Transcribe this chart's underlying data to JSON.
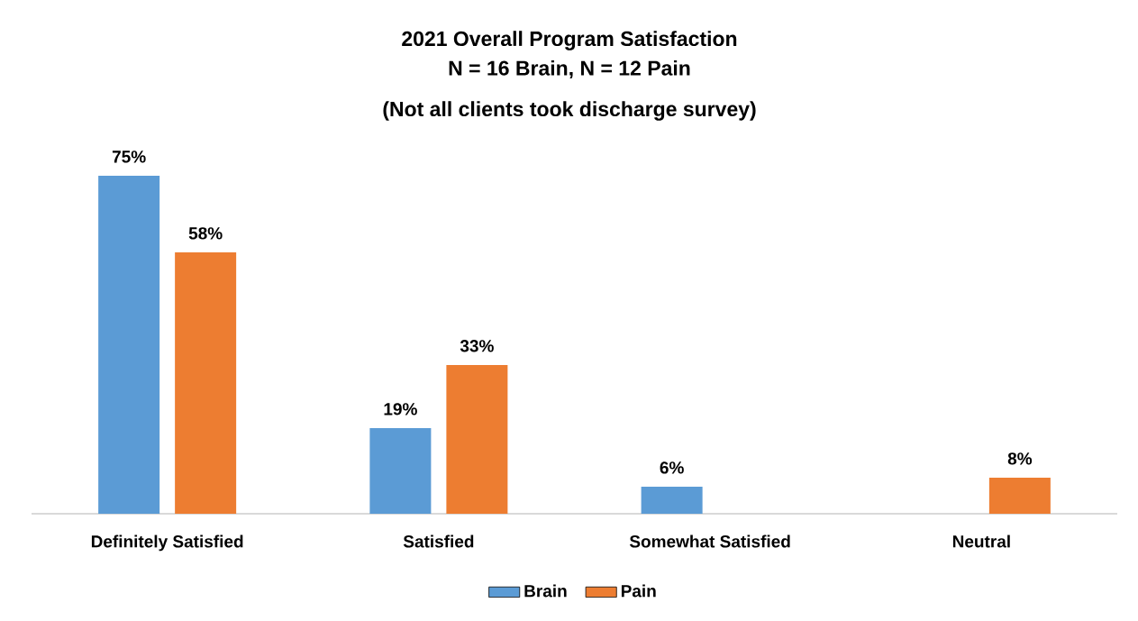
{
  "chart_data": {
    "type": "bar",
    "title": "2021 Overall Program Satisfaction",
    "subtitle": "N = 16 Brain, N = 12 Pain",
    "annotations": [
      "(Not all clients took discharge survey)"
    ],
    "categories": [
      "Definitely Satisfied",
      "Satisfied",
      "Somewhat Satisfied",
      "Neutral"
    ],
    "series": [
      {
        "name": "Brain",
        "color": "#5b9bd5",
        "values": [
          75,
          19,
          6,
          null
        ],
        "value_labels": [
          "75%",
          "19%",
          "6%",
          null
        ]
      },
      {
        "name": "Pain",
        "color": "#ed7d31",
        "values": [
          58,
          33,
          null,
          8
        ],
        "value_labels": [
          "58%",
          "33%",
          null,
          "8%"
        ]
      }
    ],
    "legend": "bottom"
  }
}
